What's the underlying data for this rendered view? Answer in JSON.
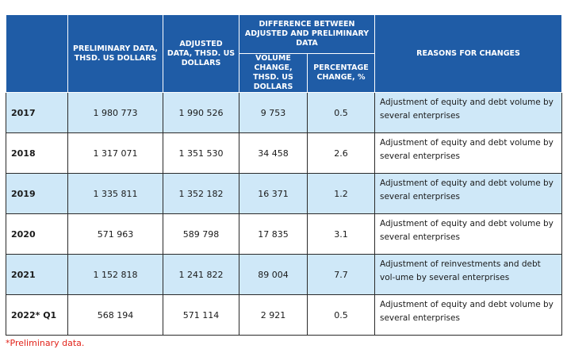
{
  "headers": {
    "preliminary": "PRELIMINARY DATA, THSD. US DOLLARS",
    "adjusted": "ADJUSTED DATA, THSD. US DOLLARS",
    "difference": "DIFFERENCE BETWEEN ADJUSTED AND PRELIMINARY DATA",
    "volume_change": "VOLUME CHANGE, THSD. US DOLLARS",
    "percentage_change": "PERCENTAGE CHANGE, %",
    "reasons": "REASONS FOR CHANGES"
  },
  "rows": [
    {
      "year": "2017",
      "preliminary": "1 980 773",
      "adjusted": "1 990 526",
      "volume": "9 753",
      "percent": "0.5",
      "reason": "Adjustment of equity and debt volume by several enterprises"
    },
    {
      "year": "2018",
      "preliminary": "1 317 071",
      "adjusted": "1 351 530",
      "volume": "34 458",
      "percent": "2.6",
      "reason": "Adjustment of equity and debt volume by several enterprises"
    },
    {
      "year": "2019",
      "preliminary": "1 335 811",
      "adjusted": "1 352 182",
      "volume": "16 371",
      "percent": "1.2",
      "reason": "Adjustment of equity and debt volume by several enterprises"
    },
    {
      "year": "2020",
      "preliminary": "571 963",
      "adjusted": "589 798",
      "volume": "17 835",
      "percent": "3.1",
      "reason": "Adjustment of equity and debt volume by several enterprises"
    },
    {
      "year": "2021",
      "preliminary": "1 152 818",
      "adjusted": "1 241 822",
      "volume": "89 004",
      "percent": "7.7",
      "reason": "Adjustment of reinvestments and debt vol-ume by several enterprises"
    },
    {
      "year": "2022* Q1",
      "preliminary": "568 194",
      "adjusted": "571 114",
      "volume": "2 921",
      "percent": "0.5",
      "reason": "Adjustment of equity and debt volume by several enterprises"
    }
  ],
  "footnote": "*Preliminary data.",
  "colors": {
    "header_bg": "#1f5ca6",
    "alt_row_bg": "#cfe8f8",
    "footnote": "#e2231a"
  }
}
